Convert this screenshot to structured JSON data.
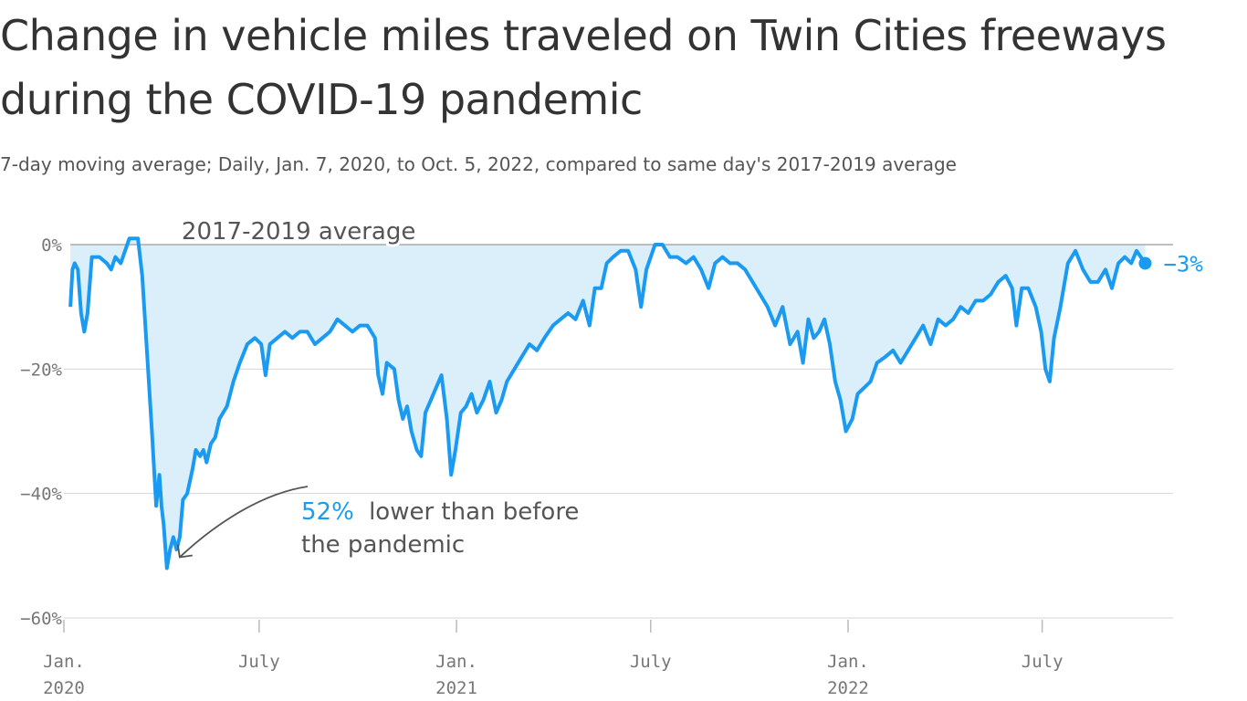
{
  "title": "Change in vehicle miles traveled on Twin Cities freeways during the COVID-19 pandemic",
  "subtitle": "7-day moving average; Daily, Jan. 7, 2020, to Oct. 5, 2022, compared to same day's 2017-2019 average",
  "colors": {
    "line": "#1a9af0",
    "area": "#dbeffb",
    "grid": "#d6d6d6",
    "baseline": "#aaaaaa"
  },
  "annotation": {
    "highlight": "52%",
    "line1": "lower than before",
    "line2": "the pandemic"
  },
  "reference_label": "2017-2019 average",
  "end_label": "−3%",
  "chart_data": {
    "type": "area",
    "ylim": [
      -60,
      0
    ],
    "y_ticks": [
      {
        "value": 0,
        "label": "0%"
      },
      {
        "value": -20,
        "label": "−20%"
      },
      {
        "value": -40,
        "label": "−40%"
      },
      {
        "value": -60,
        "label": "−60%"
      }
    ],
    "x_ticks": [
      {
        "date": "2020-01-01",
        "line1": "Jan.",
        "line2": "2020"
      },
      {
        "date": "2020-07-01",
        "line1": "July",
        "line2": ""
      },
      {
        "date": "2021-01-01",
        "line1": "Jan.",
        "line2": "2021"
      },
      {
        "date": "2021-07-01",
        "line1": "July",
        "line2": ""
      },
      {
        "date": "2022-01-01",
        "line1": "Jan.",
        "line2": "2022"
      },
      {
        "date": "2022-07-01",
        "line1": "July",
        "line2": ""
      }
    ],
    "xlim": [
      "2020-01-01",
      "2022-10-31"
    ],
    "series": [
      {
        "values": [
          [
            "2020-01-07",
            -10
          ],
          [
            "2020-01-09",
            -4
          ],
          [
            "2020-01-11",
            -3
          ],
          [
            "2020-01-14",
            -4
          ],
          [
            "2020-01-17",
            -11
          ],
          [
            "2020-01-20",
            -14
          ],
          [
            "2020-01-23",
            -11
          ],
          [
            "2020-01-27",
            -2
          ],
          [
            "2020-02-03",
            -2
          ],
          [
            "2020-02-10",
            -3
          ],
          [
            "2020-02-14",
            -4
          ],
          [
            "2020-02-18",
            -2
          ],
          [
            "2020-02-23",
            -3
          ],
          [
            "2020-02-27",
            -1
          ],
          [
            "2020-03-02",
            1
          ],
          [
            "2020-03-10",
            1
          ],
          [
            "2020-03-14",
            -5
          ],
          [
            "2020-03-18",
            -16
          ],
          [
            "2020-03-23",
            -30
          ],
          [
            "2020-03-27",
            -42
          ],
          [
            "2020-03-30",
            -37
          ],
          [
            "2020-04-01",
            -42
          ],
          [
            "2020-04-03",
            -45
          ],
          [
            "2020-04-06",
            -52
          ],
          [
            "2020-04-09",
            -49
          ],
          [
            "2020-04-12",
            -47
          ],
          [
            "2020-04-15",
            -49
          ],
          [
            "2020-04-18",
            -47
          ],
          [
            "2020-04-21",
            -41
          ],
          [
            "2020-04-25",
            -40
          ],
          [
            "2020-04-30",
            -36
          ],
          [
            "2020-05-03",
            -33
          ],
          [
            "2020-05-07",
            -34
          ],
          [
            "2020-05-10",
            -33
          ],
          [
            "2020-05-13",
            -35
          ],
          [
            "2020-05-17",
            -32
          ],
          [
            "2020-05-21",
            -31
          ],
          [
            "2020-05-25",
            -28
          ],
          [
            "2020-06-01",
            -26
          ],
          [
            "2020-06-07",
            -22
          ],
          [
            "2020-06-13",
            -19
          ],
          [
            "2020-06-20",
            -16
          ],
          [
            "2020-06-27",
            -15
          ],
          [
            "2020-07-03",
            -16
          ],
          [
            "2020-07-07",
            -21
          ],
          [
            "2020-07-11",
            -16
          ],
          [
            "2020-07-18",
            -15
          ],
          [
            "2020-07-25",
            -14
          ],
          [
            "2020-08-01",
            -15
          ],
          [
            "2020-08-08",
            -14
          ],
          [
            "2020-08-15",
            -14
          ],
          [
            "2020-08-22",
            -16
          ],
          [
            "2020-08-29",
            -15
          ],
          [
            "2020-09-05",
            -14
          ],
          [
            "2020-09-12",
            -12
          ],
          [
            "2020-09-19",
            -13
          ],
          [
            "2020-09-26",
            -14
          ],
          [
            "2020-10-03",
            -13
          ],
          [
            "2020-10-10",
            -13
          ],
          [
            "2020-10-17",
            -15
          ],
          [
            "2020-10-20",
            -21
          ],
          [
            "2020-10-24",
            -24
          ],
          [
            "2020-10-28",
            -19
          ],
          [
            "2020-11-04",
            -20
          ],
          [
            "2020-11-08",
            -25
          ],
          [
            "2020-11-12",
            -28
          ],
          [
            "2020-11-16",
            -26
          ],
          [
            "2020-11-20",
            -30
          ],
          [
            "2020-11-25",
            -33
          ],
          [
            "2020-11-29",
            -34
          ],
          [
            "2020-12-03",
            -27
          ],
          [
            "2020-12-08",
            -25
          ],
          [
            "2020-12-13",
            -23
          ],
          [
            "2020-12-18",
            -21
          ],
          [
            "2020-12-23",
            -28
          ],
          [
            "2020-12-27",
            -37
          ],
          [
            "2020-12-31",
            -33
          ],
          [
            "2021-01-05",
            -27
          ],
          [
            "2021-01-10",
            -26
          ],
          [
            "2021-01-15",
            -24
          ],
          [
            "2021-01-20",
            -27
          ],
          [
            "2021-01-26",
            -25
          ],
          [
            "2021-02-01",
            -22
          ],
          [
            "2021-02-07",
            -27
          ],
          [
            "2021-02-12",
            -25
          ],
          [
            "2021-02-17",
            -22
          ],
          [
            "2021-02-24",
            -20
          ],
          [
            "2021-03-03",
            -18
          ],
          [
            "2021-03-10",
            -16
          ],
          [
            "2021-03-17",
            -17
          ],
          [
            "2021-03-24",
            -15
          ],
          [
            "2021-04-01",
            -13
          ],
          [
            "2021-04-08",
            -12
          ],
          [
            "2021-04-15",
            -11
          ],
          [
            "2021-04-22",
            -12
          ],
          [
            "2021-04-29",
            -9
          ],
          [
            "2021-05-05",
            -13
          ],
          [
            "2021-05-10",
            -7
          ],
          [
            "2021-05-16",
            -7
          ],
          [
            "2021-05-21",
            -3
          ],
          [
            "2021-05-27",
            -2
          ],
          [
            "2021-06-03",
            -1
          ],
          [
            "2021-06-10",
            -1
          ],
          [
            "2021-06-17",
            -4
          ],
          [
            "2021-06-22",
            -10
          ],
          [
            "2021-06-27",
            -4
          ],
          [
            "2021-07-05",
            0
          ],
          [
            "2021-07-12",
            0
          ],
          [
            "2021-07-19",
            -2
          ],
          [
            "2021-07-26",
            -2
          ],
          [
            "2021-08-03",
            -3
          ],
          [
            "2021-08-10",
            -2
          ],
          [
            "2021-08-17",
            -4
          ],
          [
            "2021-08-24",
            -7
          ],
          [
            "2021-08-30",
            -3
          ],
          [
            "2021-09-06",
            -2
          ],
          [
            "2021-09-13",
            -3
          ],
          [
            "2021-09-20",
            -3
          ],
          [
            "2021-09-27",
            -4
          ],
          [
            "2021-10-04",
            -6
          ],
          [
            "2021-10-11",
            -8
          ],
          [
            "2021-10-18",
            -10
          ],
          [
            "2021-10-25",
            -13
          ],
          [
            "2021-11-01",
            -10
          ],
          [
            "2021-11-08",
            -16
          ],
          [
            "2021-11-15",
            -14
          ],
          [
            "2021-11-20",
            -19
          ],
          [
            "2021-11-25",
            -12
          ],
          [
            "2021-11-30",
            -15
          ],
          [
            "2021-12-05",
            -14
          ],
          [
            "2021-12-10",
            -12
          ],
          [
            "2021-12-15",
            -16
          ],
          [
            "2021-12-20",
            -22
          ],
          [
            "2021-12-25",
            -25
          ],
          [
            "2021-12-30",
            -30
          ],
          [
            "2022-01-05",
            -28
          ],
          [
            "2022-01-10",
            -24
          ],
          [
            "2022-01-16",
            -23
          ],
          [
            "2022-01-22",
            -22
          ],
          [
            "2022-01-28",
            -19
          ],
          [
            "2022-02-05",
            -18
          ],
          [
            "2022-02-12",
            -17
          ],
          [
            "2022-02-19",
            -19
          ],
          [
            "2022-02-26",
            -17
          ],
          [
            "2022-03-05",
            -15
          ],
          [
            "2022-03-12",
            -13
          ],
          [
            "2022-03-19",
            -16
          ],
          [
            "2022-03-26",
            -12
          ],
          [
            "2022-04-02",
            -13
          ],
          [
            "2022-04-09",
            -12
          ],
          [
            "2022-04-16",
            -10
          ],
          [
            "2022-04-23",
            -11
          ],
          [
            "2022-04-30",
            -9
          ],
          [
            "2022-05-07",
            -9
          ],
          [
            "2022-05-14",
            -8
          ],
          [
            "2022-05-21",
            -6
          ],
          [
            "2022-05-28",
            -5
          ],
          [
            "2022-06-03",
            -7
          ],
          [
            "2022-06-07",
            -13
          ],
          [
            "2022-06-12",
            -7
          ],
          [
            "2022-06-18",
            -7
          ],
          [
            "2022-06-25",
            -10
          ],
          [
            "2022-06-30",
            -14
          ],
          [
            "2022-07-04",
            -20
          ],
          [
            "2022-07-08",
            -22
          ],
          [
            "2022-07-12",
            -15
          ],
          [
            "2022-07-18",
            -10
          ],
          [
            "2022-07-25",
            -3
          ],
          [
            "2022-08-01",
            -1
          ],
          [
            "2022-08-08",
            -4
          ],
          [
            "2022-08-15",
            -6
          ],
          [
            "2022-08-22",
            -6
          ],
          [
            "2022-08-29",
            -4
          ],
          [
            "2022-09-04",
            -7
          ],
          [
            "2022-09-10",
            -3
          ],
          [
            "2022-09-16",
            -2
          ],
          [
            "2022-09-22",
            -3
          ],
          [
            "2022-09-27",
            -1
          ],
          [
            "2022-10-01",
            -2
          ],
          [
            "2022-10-05",
            -3
          ]
        ]
      }
    ]
  }
}
